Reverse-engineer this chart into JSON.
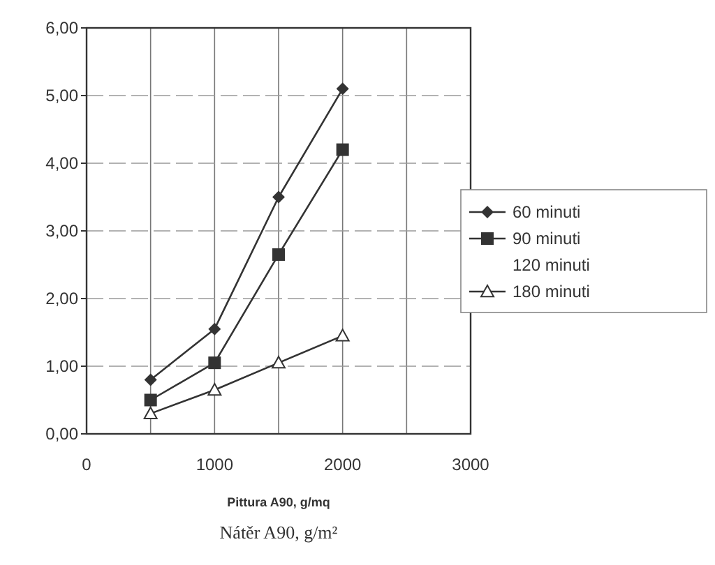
{
  "chart_data": {
    "type": "line",
    "xlabel": "Pittura A90, g/mq",
    "annotations": [
      "Nátěr A90, g/m²"
    ],
    "x": [
      500,
      1000,
      1500,
      2000
    ],
    "series": [
      {
        "name": "60 minuti",
        "color": "#333333",
        "values": [
          0.8,
          1.55,
          3.5,
          5.1
        ],
        "marker": "diamond"
      },
      {
        "name": "90 minuti",
        "color": "#333333",
        "values": [
          0.5,
          1.05,
          2.65,
          4.2
        ],
        "marker": "square"
      },
      {
        "name": "120 minuti",
        "color": "#333333",
        "values": [
          null,
          null,
          null,
          null
        ],
        "marker": "none"
      },
      {
        "name": "180 minuti",
        "color": "#333333",
        "values": [
          0.3,
          0.65,
          1.05,
          1.45
        ],
        "marker": "triangle"
      }
    ],
    "xlim": [
      0,
      3000
    ],
    "ylim": [
      0,
      6
    ],
    "xticks": [
      0,
      {
        "value": 500,
        "label": null
      },
      1000,
      {
        "value": 1500,
        "label": null
      },
      2000,
      {
        "value": 2500,
        "label": null
      },
      3000
    ],
    "yticks": [
      {
        "value": 0,
        "label": "0,00"
      },
      {
        "value": 1,
        "label": "1,00"
      },
      {
        "value": 2,
        "label": "2,00"
      },
      {
        "value": 3,
        "label": "3,00"
      },
      {
        "value": 4,
        "label": "4,00"
      },
      {
        "value": 5,
        "label": "5,00"
      },
      {
        "value": 6,
        "label": "6,00"
      }
    ],
    "grid": true,
    "legend": "right",
    "line_style": "solid"
  }
}
